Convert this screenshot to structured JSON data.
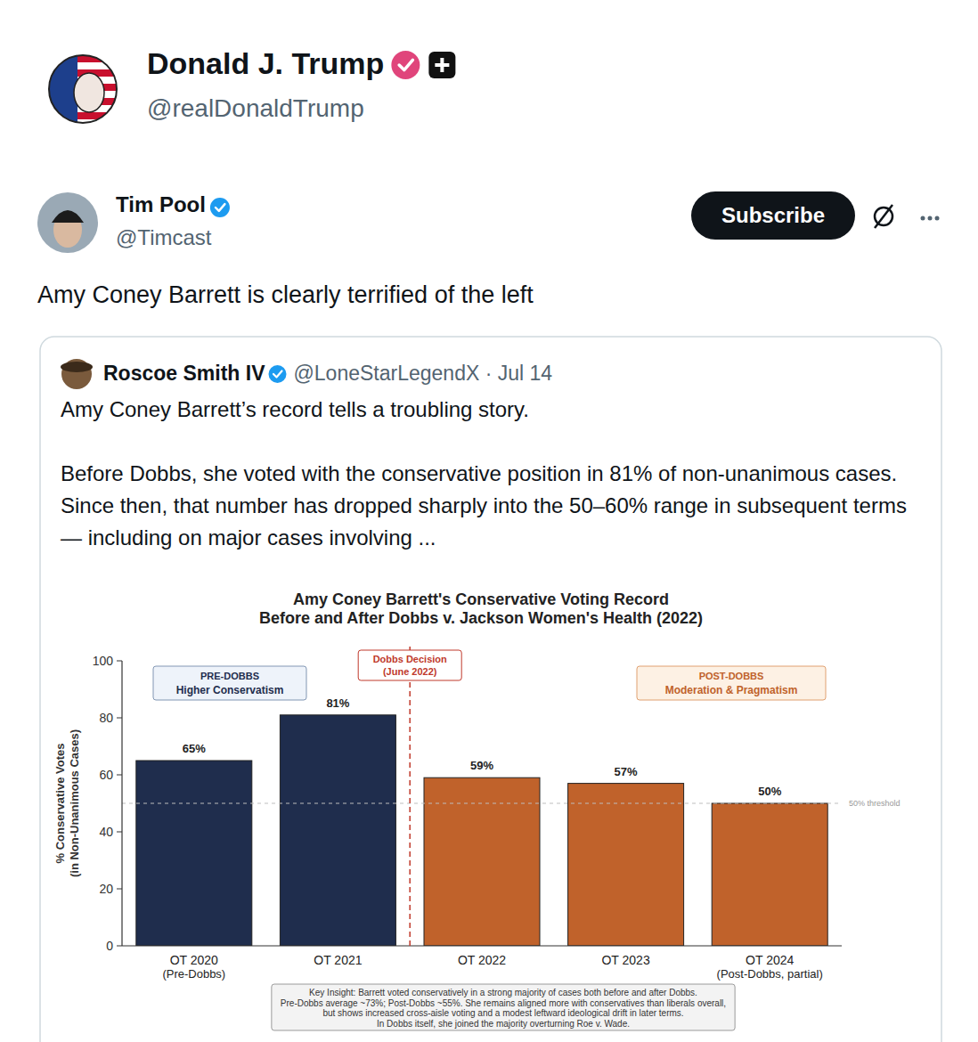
{
  "post": {
    "author_name": "Donald J. Trump",
    "author_handle": "@realDonaldTrump"
  },
  "repost": {
    "author_name": "Tim Pool",
    "author_handle": "@Timcast",
    "button": "Subscribe",
    "text": "Amy Coney Barrett is clearly terrified of the left"
  },
  "quoted": {
    "author_name": "Roscoe Smith IV",
    "handle_line": "@LoneStarLegendX · Jul 14",
    "headline": "Amy Coney Barrett’s record tells a troubling story.",
    "body": "Before Dobbs, she voted with the conservative position in 81% of non-unanimous cases. Since then, that number has dropped sharply into the 50–60% range in subsequent terms — including on major cases involving ..."
  },
  "chart_data": {
    "type": "bar",
    "title": "Amy Coney Barrett's Conservative Voting Record",
    "subtitle": "Before and After Dobbs v. Jackson Women's Health (2022)",
    "y_label": "% Conservative Votes (in Non-Unanimous Cases)",
    "categories": [
      "OT 2020",
      "OT 2021",
      "OT 2022",
      "OT 2023",
      "OT 2024"
    ],
    "category_notes": [
      "(Pre-Dobbs)",
      null,
      null,
      null,
      "(Post-Dobbs, partial)"
    ],
    "values": [
      65,
      81,
      59,
      57,
      50
    ],
    "value_labels": [
      "65%",
      "81%",
      "59%",
      "57%",
      "50%"
    ],
    "data_labels": true,
    "colors": [
      "#1f2d4d",
      "#1f2d4d",
      "#c0622b",
      "#c0622b",
      "#c0622b"
    ],
    "ylim": [
      0,
      100
    ],
    "yticks": [
      0,
      20,
      40,
      60,
      80,
      100
    ],
    "grid": false,
    "dobbs_line": {
      "x": 1.5,
      "text": [
        "Dobbs Decision",
        "(June 2022)"
      ]
    },
    "regions": [
      {
        "title": "PRE-DOBBS",
        "text": "Higher Conservatism"
      },
      {
        "title": "POST-DOBBS",
        "text": "Moderation & Pragmatism"
      }
    ],
    "threshold": {
      "value": 50,
      "label": "50% threshold"
    },
    "key_insight": [
      "Key Insight: Barrett voted conservatively in a strong majority of cases both before and after Dobbs.",
      "Pre-Dobbs average ~73%; Post-Dobbs ~55%. She remains aligned more with conservatives than liberals overall,",
      "but shows increased cross-aisle voting and a modest leftward ideological drift in later terms.",
      "In Dobbs itself, she joined the majority overturning Roe v. Wade."
    ]
  }
}
